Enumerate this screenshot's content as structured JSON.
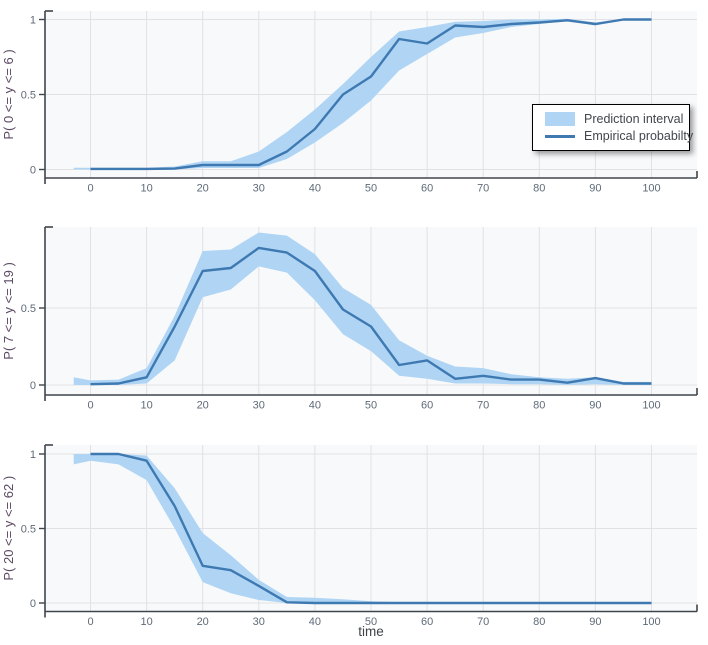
{
  "figure": {
    "xlabel": "time",
    "xtick_labels": [
      "0",
      "10",
      "20",
      "30",
      "40",
      "50",
      "60",
      "70",
      "80",
      "90",
      "100"
    ],
    "colors": {
      "band": "#b0d5f4",
      "line": "#3e79b2",
      "plot_background": "#f8f9fb",
      "grid": "#e0e2e6",
      "axis": "#3f454c",
      "tick_label": "#5f6b78",
      "y_axis_title": "#5b4963",
      "x_axis_title": "#3f4347",
      "legend_border": "#000000",
      "legend_text": "#40474e"
    },
    "legend": {
      "position": "top-right of first subplot",
      "items": [
        {
          "label": "Prediction interval",
          "swatch": "band"
        },
        {
          "label": "Empirical probabilty",
          "swatch": "line"
        }
      ]
    }
  },
  "chart_data": [
    {
      "type": "area",
      "title": "",
      "ylabel": "P( 0 <= y <= 6 )",
      "xlabel": "",
      "grid": true,
      "xlim": [
        -8.1,
        108.2
      ],
      "ylim": [
        -0.06,
        1.06
      ],
      "xticks": [
        0,
        10,
        20,
        30,
        40,
        50,
        60,
        70,
        80,
        90,
        100
      ],
      "yticks": [
        {
          "value": 0,
          "label": "0"
        },
        {
          "value": 0.5,
          "label": "0.5"
        },
        {
          "value": 1,
          "label": "1"
        }
      ],
      "x": [
        0,
        5,
        10,
        15,
        20,
        25,
        30,
        35,
        40,
        45,
        50,
        55,
        60,
        65,
        70,
        75,
        80,
        85,
        90,
        95,
        100
      ],
      "empirical_probability": [
        0.004,
        0.004,
        0.004,
        0.006,
        0.03,
        0.03,
        0.03,
        0.12,
        0.27,
        0.5,
        0.62,
        0.87,
        0.84,
        0.96,
        0.95,
        0.97,
        0.98,
        0.995,
        0.97,
        1.0,
        1.0
      ],
      "prediction_interval": {
        "lower": [
          0,
          0,
          0,
          0,
          0.01,
          0.01,
          0.01,
          0.07,
          0.18,
          0.31,
          0.46,
          0.66,
          0.77,
          0.88,
          0.91,
          0.95,
          0.97,
          0.99,
          0.96,
          0.995,
          0.995
        ],
        "upper": [
          0.012,
          0.012,
          0.012,
          0.02,
          0.055,
          0.055,
          0.12,
          0.25,
          0.4,
          0.57,
          0.75,
          0.92,
          0.95,
          0.985,
          0.99,
          1.0,
          1.0,
          1.005,
          0.98,
          1.005,
          1.005
        ],
        "prestart": {
          "x": -3,
          "lower": 0.0,
          "upper": 0.012
        }
      }
    },
    {
      "type": "area",
      "title": "",
      "ylabel": "P( 7 <= y <= 19 )",
      "xlabel": "",
      "grid": true,
      "xlim": [
        -8.1,
        108.2
      ],
      "ylim": [
        -0.065,
        1.02
      ],
      "xticks": [
        0,
        10,
        20,
        30,
        40,
        50,
        60,
        70,
        80,
        90,
        100
      ],
      "yticks": [
        {
          "value": 0,
          "label": "0"
        },
        {
          "value": 0.5,
          "label": "0.5"
        }
      ],
      "x": [
        0,
        5,
        10,
        15,
        20,
        25,
        30,
        35,
        40,
        45,
        50,
        55,
        60,
        65,
        70,
        75,
        80,
        85,
        90,
        95,
        100
      ],
      "empirical_probability": [
        0.005,
        0.01,
        0.05,
        0.38,
        0.74,
        0.76,
        0.89,
        0.86,
        0.74,
        0.49,
        0.38,
        0.13,
        0.16,
        0.04,
        0.06,
        0.035,
        0.035,
        0.015,
        0.045,
        0.01,
        0.01
      ],
      "prediction_interval": {
        "lower": [
          0,
          0,
          0.01,
          0.16,
          0.57,
          0.62,
          0.77,
          0.73,
          0.55,
          0.33,
          0.22,
          0.06,
          0.04,
          0.01,
          0.01,
          0.005,
          0.005,
          0,
          0.005,
          0,
          0
        ],
        "upper": [
          0.03,
          0.035,
          0.11,
          0.45,
          0.87,
          0.88,
          0.99,
          0.97,
          0.85,
          0.63,
          0.52,
          0.29,
          0.19,
          0.12,
          0.11,
          0.07,
          0.05,
          0.04,
          0.05,
          0.02,
          0.02
        ],
        "prestart": {
          "x": -3,
          "lower": 0.0,
          "upper": 0.05
        }
      }
    },
    {
      "type": "area",
      "title": "",
      "ylabel": "P( 20 <= y <= 62 )",
      "xlabel": "time",
      "grid": true,
      "xlim": [
        -8.1,
        108.2
      ],
      "ylim": [
        -0.057,
        1.06
      ],
      "xticks": [
        0,
        10,
        20,
        30,
        40,
        50,
        60,
        70,
        80,
        90,
        100
      ],
      "yticks": [
        {
          "value": 0,
          "label": "0"
        },
        {
          "value": 0.5,
          "label": "0.5"
        },
        {
          "value": 1,
          "label": "1"
        }
      ],
      "x": [
        0,
        5,
        10,
        15,
        20,
        25,
        30,
        35,
        40,
        45,
        50,
        55,
        60,
        65,
        70,
        75,
        80,
        85,
        90,
        95,
        100
      ],
      "empirical_probability": [
        1.0,
        1.0,
        0.955,
        0.65,
        0.25,
        0.22,
        0.115,
        0.005,
        0,
        0,
        0,
        0,
        0,
        0,
        0,
        0,
        0,
        0,
        0,
        0,
        0
      ],
      "prediction_interval": {
        "lower": [
          0.955,
          0.93,
          0.825,
          0.5,
          0.14,
          0.065,
          0.02,
          0,
          0,
          0,
          0,
          0,
          0,
          0,
          0,
          0,
          0,
          0,
          0,
          0,
          0
        ],
        "upper": [
          1.0,
          1.0,
          0.99,
          0.77,
          0.47,
          0.32,
          0.155,
          0.04,
          0.035,
          0.025,
          0.012,
          0.005,
          0,
          0,
          0,
          0,
          0,
          0,
          0,
          0,
          0
        ],
        "prestart": {
          "x": -3,
          "lower": 0.93,
          "upper": 1.0
        }
      }
    }
  ]
}
